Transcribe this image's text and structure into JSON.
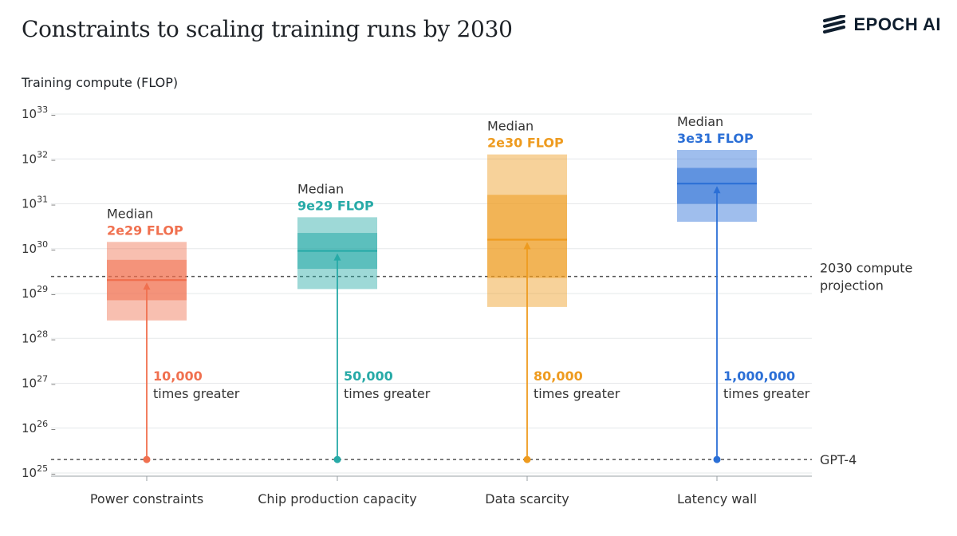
{
  "title": "Constraints to scaling training runs by 2030",
  "logo": {
    "text": "EPOCH AI",
    "icon": "epoch-stripes-icon"
  },
  "chart_data": {
    "type": "box",
    "title": "Constraints to scaling training runs by 2030",
    "ylabel": "Training compute (FLOP)",
    "yscale": "log",
    "ylim": [
      1e+25,
      1e+33
    ],
    "yticks": [
      {
        "mantissa": "10",
        "exp": "25",
        "value": 25
      },
      {
        "mantissa": "10",
        "exp": "26",
        "value": 26
      },
      {
        "mantissa": "10",
        "exp": "27",
        "value": 27
      },
      {
        "mantissa": "10",
        "exp": "28",
        "value": 28
      },
      {
        "mantissa": "10",
        "exp": "29",
        "value": 29
      },
      {
        "mantissa": "10",
        "exp": "30",
        "value": 30
      },
      {
        "mantissa": "10",
        "exp": "31",
        "value": 31
      },
      {
        "mantissa": "10",
        "exp": "32",
        "value": 32
      },
      {
        "mantissa": "10",
        "exp": "33",
        "value": 33
      }
    ],
    "categories": [
      "Power constraints",
      "Chip production capacity",
      "Data scarcity",
      "Latency wall"
    ],
    "boxes": [
      {
        "category": "Power constraints",
        "color": "#f0704f",
        "median_label": "Median",
        "median_value_label": "2e29 FLOP",
        "median_log": 29.3,
        "inner_log": [
          28.85,
          29.75
        ],
        "outer_log": [
          28.4,
          30.15
        ],
        "multiplier": "10,000",
        "multiplier_text": "times greater"
      },
      {
        "category": "Chip production capacity",
        "color": "#27aaa7",
        "median_label": "Median",
        "median_value_label": "9e29 FLOP",
        "median_log": 29.95,
        "inner_log": [
          29.55,
          30.35
        ],
        "outer_log": [
          29.1,
          30.7
        ],
        "multiplier": "50,000",
        "multiplier_text": "times greater"
      },
      {
        "category": "Data scarcity",
        "color": "#ee9b1f",
        "median_label": "Median",
        "median_value_label": "2e30 FLOP",
        "median_log": 30.2,
        "inner_log": [
          29.35,
          31.2
        ],
        "outer_log": [
          28.7,
          32.1
        ],
        "multiplier": "80,000",
        "multiplier_text": "times greater"
      },
      {
        "category": "Latency wall",
        "color": "#2b6fd6",
        "median_label": "Median",
        "median_value_label": "3e31 FLOP",
        "median_log": 31.45,
        "inner_log": [
          31.0,
          31.8
        ],
        "outer_log": [
          30.6,
          32.2
        ],
        "multiplier": "1,000,000",
        "multiplier_text": "times greater"
      }
    ],
    "reference_lines": [
      {
        "label_lines": [
          "2030 compute",
          "projection"
        ],
        "log": 29.38
      },
      {
        "label_lines": [
          "GPT-4"
        ],
        "log": 25.3
      }
    ],
    "arrow_start_log": 25.3,
    "grid": true,
    "legend": "none"
  }
}
